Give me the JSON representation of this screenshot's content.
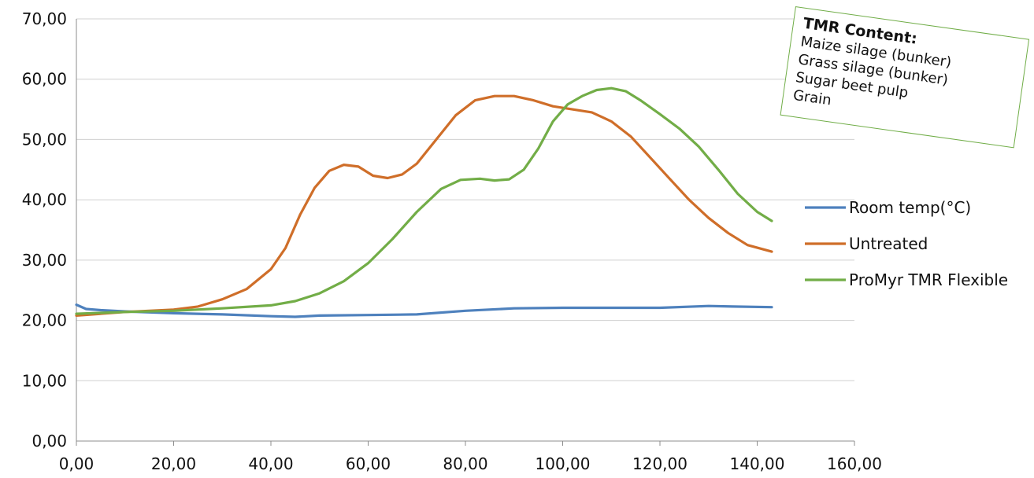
{
  "chart_data": {
    "type": "line",
    "xlim": [
      0,
      160
    ],
    "ylim": [
      0,
      70
    ],
    "x_ticks": [
      "0,00",
      "20,00",
      "40,00",
      "60,00",
      "80,00",
      "100,00",
      "120,00",
      "140,00",
      "160,00"
    ],
    "y_ticks": [
      "0,00",
      "10,00",
      "20,00",
      "30,00",
      "40,00",
      "50,00",
      "60,00",
      "70,00"
    ],
    "grid": "horizontal",
    "legend_position": "right",
    "series": [
      {
        "name": "Room temp(°C)",
        "color": "#4e81bd",
        "points": [
          [
            0,
            22.6
          ],
          [
            2,
            21.9
          ],
          [
            5,
            21.7
          ],
          [
            10,
            21.5
          ],
          [
            20,
            21.2
          ],
          [
            30,
            21.0
          ],
          [
            40,
            20.7
          ],
          [
            45,
            20.6
          ],
          [
            50,
            20.8
          ],
          [
            60,
            20.9
          ],
          [
            70,
            21.0
          ],
          [
            80,
            21.6
          ],
          [
            90,
            22.0
          ],
          [
            100,
            22.1
          ],
          [
            110,
            22.1
          ],
          [
            120,
            22.1
          ],
          [
            130,
            22.4
          ],
          [
            135,
            22.3
          ],
          [
            143,
            22.2
          ]
        ]
      },
      {
        "name": "Untreated",
        "color": "#cf6e29",
        "points": [
          [
            0,
            20.8
          ],
          [
            10,
            21.4
          ],
          [
            20,
            21.8
          ],
          [
            25,
            22.3
          ],
          [
            30,
            23.5
          ],
          [
            35,
            25.2
          ],
          [
            40,
            28.5
          ],
          [
            43,
            32.0
          ],
          [
            46,
            37.5
          ],
          [
            49,
            42.0
          ],
          [
            52,
            44.8
          ],
          [
            55,
            45.8
          ],
          [
            58,
            45.5
          ],
          [
            61,
            44.0
          ],
          [
            64,
            43.6
          ],
          [
            67,
            44.2
          ],
          [
            70,
            46.0
          ],
          [
            74,
            50.0
          ],
          [
            78,
            54.0
          ],
          [
            82,
            56.5
          ],
          [
            86,
            57.2
          ],
          [
            90,
            57.2
          ],
          [
            94,
            56.5
          ],
          [
            98,
            55.5
          ],
          [
            102,
            55.0
          ],
          [
            106,
            54.5
          ],
          [
            110,
            53.0
          ],
          [
            114,
            50.5
          ],
          [
            118,
            47.0
          ],
          [
            122,
            43.5
          ],
          [
            126,
            40.0
          ],
          [
            130,
            37.0
          ],
          [
            134,
            34.5
          ],
          [
            138,
            32.5
          ],
          [
            143,
            31.4
          ]
        ]
      },
      {
        "name": "ProMyr TMR Flexible",
        "color": "#72ad47",
        "points": [
          [
            0,
            21.1
          ],
          [
            10,
            21.4
          ],
          [
            20,
            21.6
          ],
          [
            30,
            22.0
          ],
          [
            40,
            22.5
          ],
          [
            45,
            23.2
          ],
          [
            50,
            24.5
          ],
          [
            55,
            26.5
          ],
          [
            60,
            29.5
          ],
          [
            65,
            33.5
          ],
          [
            70,
            38.0
          ],
          [
            75,
            41.8
          ],
          [
            79,
            43.3
          ],
          [
            83,
            43.5
          ],
          [
            86,
            43.2
          ],
          [
            89,
            43.4
          ],
          [
            92,
            45.0
          ],
          [
            95,
            48.5
          ],
          [
            98,
            53.0
          ],
          [
            101,
            55.8
          ],
          [
            104,
            57.2
          ],
          [
            107,
            58.2
          ],
          [
            110,
            58.5
          ],
          [
            113,
            58.0
          ],
          [
            116,
            56.5
          ],
          [
            120,
            54.2
          ],
          [
            124,
            51.8
          ],
          [
            128,
            48.8
          ],
          [
            132,
            45.0
          ],
          [
            136,
            41.0
          ],
          [
            140,
            38.0
          ],
          [
            143,
            36.5
          ]
        ]
      }
    ]
  },
  "note": {
    "title": "TMR Content:",
    "lines": [
      "Maize silage (bunker)",
      "Grass silage (bunker)",
      "Sugar beet pulp",
      "Grain"
    ]
  }
}
